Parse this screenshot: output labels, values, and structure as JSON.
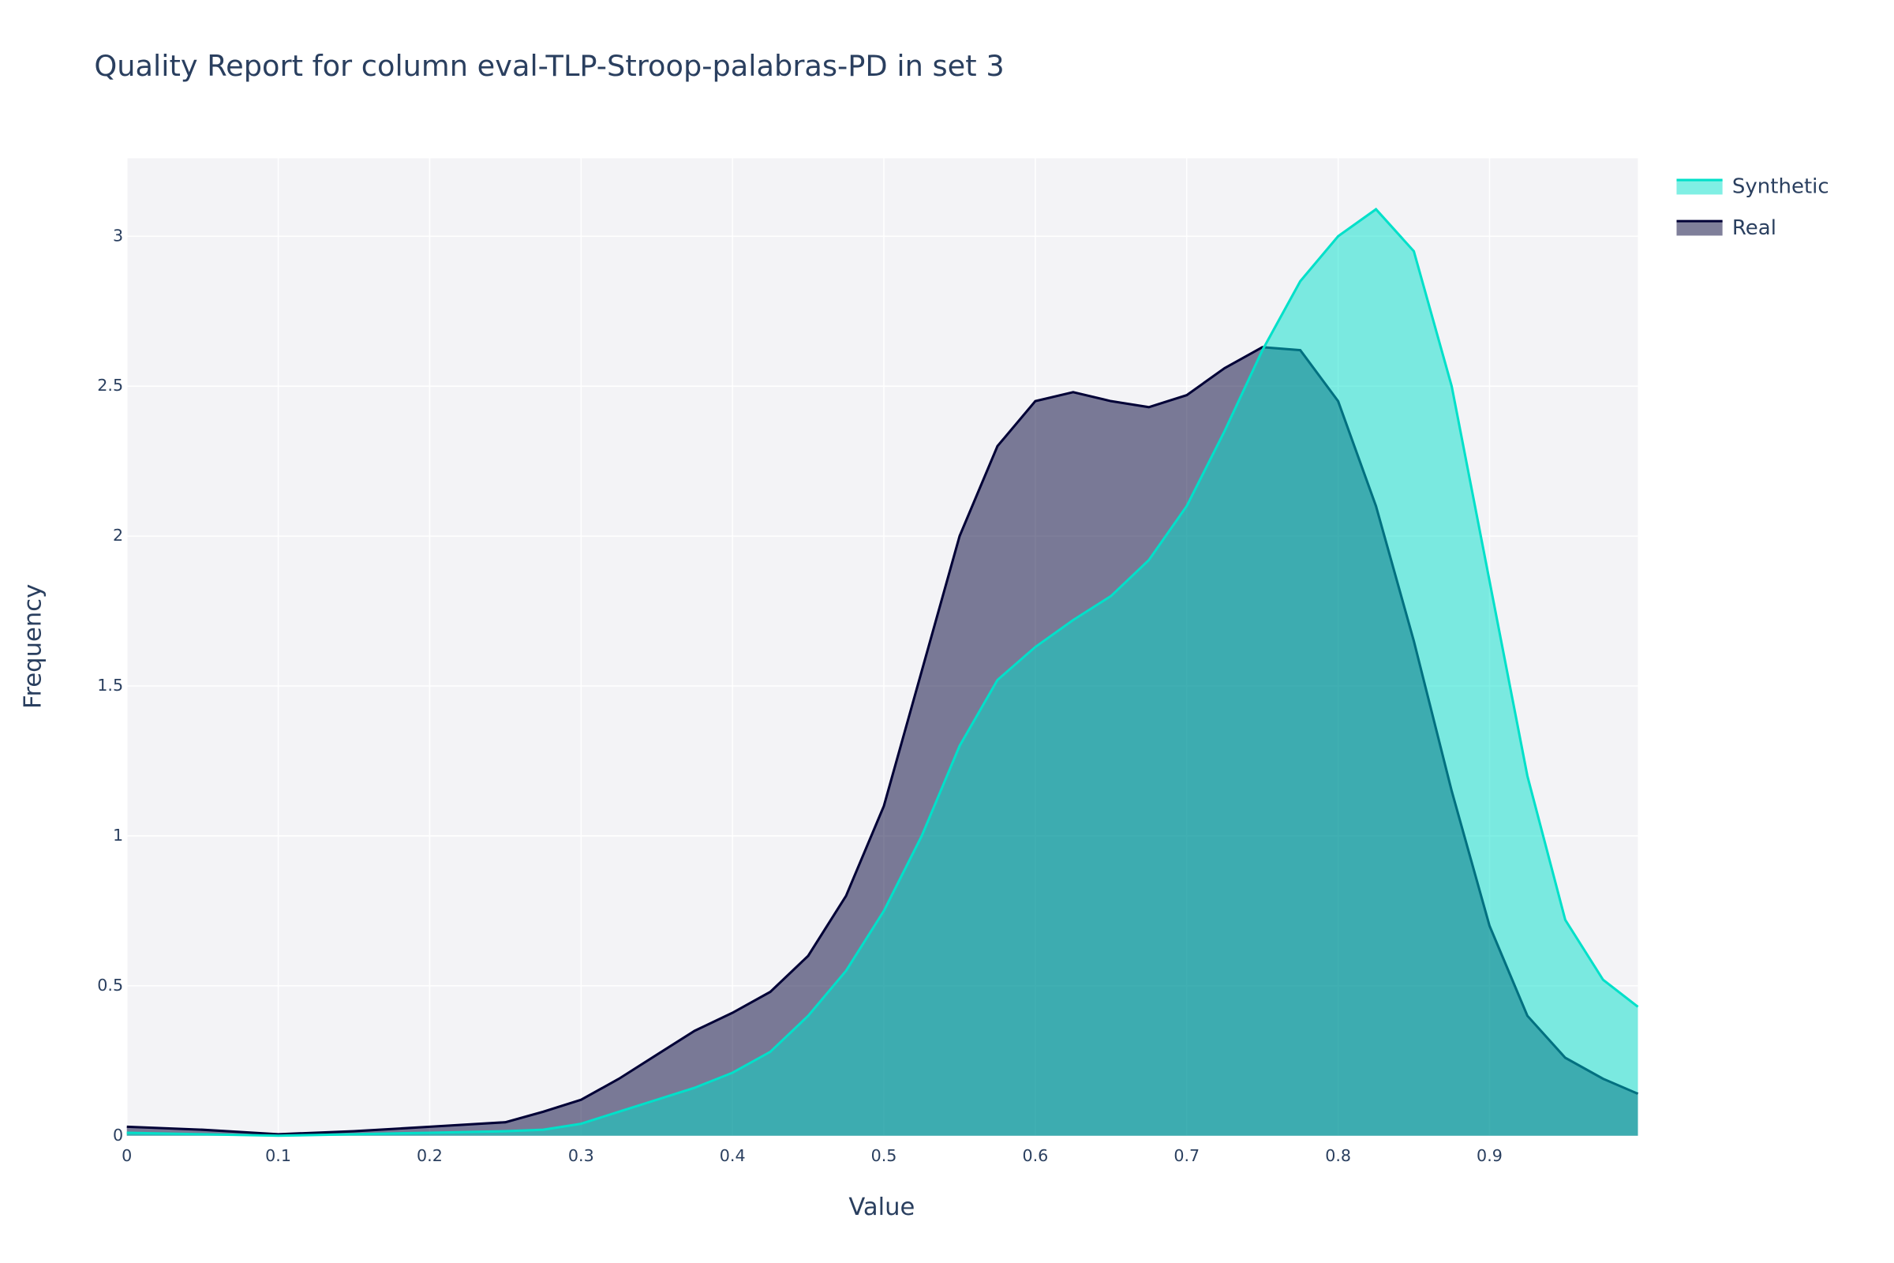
{
  "chart_data": {
    "type": "area",
    "title": "Quality Report for column eval-TLP-Stroop-palabras-PD in set 3",
    "x_label": "Value",
    "y_label": "Frequency",
    "x": [
      0,
      0.05,
      0.1,
      0.15,
      0.2,
      0.25,
      0.275,
      0.3,
      0.325,
      0.35,
      0.375,
      0.4,
      0.425,
      0.45,
      0.475,
      0.5,
      0.525,
      0.55,
      0.575,
      0.6,
      0.625,
      0.65,
      0.675,
      0.7,
      0.725,
      0.75,
      0.775,
      0.8,
      0.825,
      0.85,
      0.875,
      0.9,
      0.925,
      0.95,
      0.975,
      0.998
    ],
    "series": [
      {
        "name": "Real",
        "color": "#000036",
        "fill": "rgba(0,0,54,0.5)",
        "values": [
          0.03,
          0.02,
          0.005,
          0.015,
          0.03,
          0.045,
          0.08,
          0.12,
          0.19,
          0.27,
          0.35,
          0.41,
          0.48,
          0.6,
          0.8,
          1.1,
          1.55,
          2.0,
          2.3,
          2.45,
          2.48,
          2.45,
          2.43,
          2.47,
          2.56,
          2.63,
          2.62,
          2.45,
          2.1,
          1.65,
          1.15,
          0.7,
          0.4,
          0.26,
          0.19,
          0.14
        ]
      },
      {
        "name": "Synthetic",
        "color": "#01e0c9",
        "fill": "rgba(1,224,201,0.5)",
        "values": [
          0.01,
          0.005,
          0,
          0.005,
          0.01,
          0.015,
          0.02,
          0.04,
          0.08,
          0.12,
          0.16,
          0.21,
          0.28,
          0.4,
          0.55,
          0.75,
          1.0,
          1.3,
          1.52,
          1.63,
          1.72,
          1.8,
          1.92,
          2.1,
          2.35,
          2.62,
          2.85,
          3.0,
          3.09,
          2.95,
          2.5,
          1.85,
          1.2,
          0.72,
          0.52,
          0.43
        ]
      }
    ],
    "legend_order": [
      1,
      0
    ],
    "xlim": [
      0,
      0.998
    ],
    "xticks": [
      0,
      0.1,
      0.2,
      0.3,
      0.4,
      0.5,
      0.6,
      0.7,
      0.8,
      0.9
    ],
    "ylim": [
      0,
      3.26
    ],
    "yticks": [
      0,
      0.5,
      1,
      1.5,
      2,
      2.5,
      3
    ],
    "grid": true,
    "legend": "top-right"
  }
}
